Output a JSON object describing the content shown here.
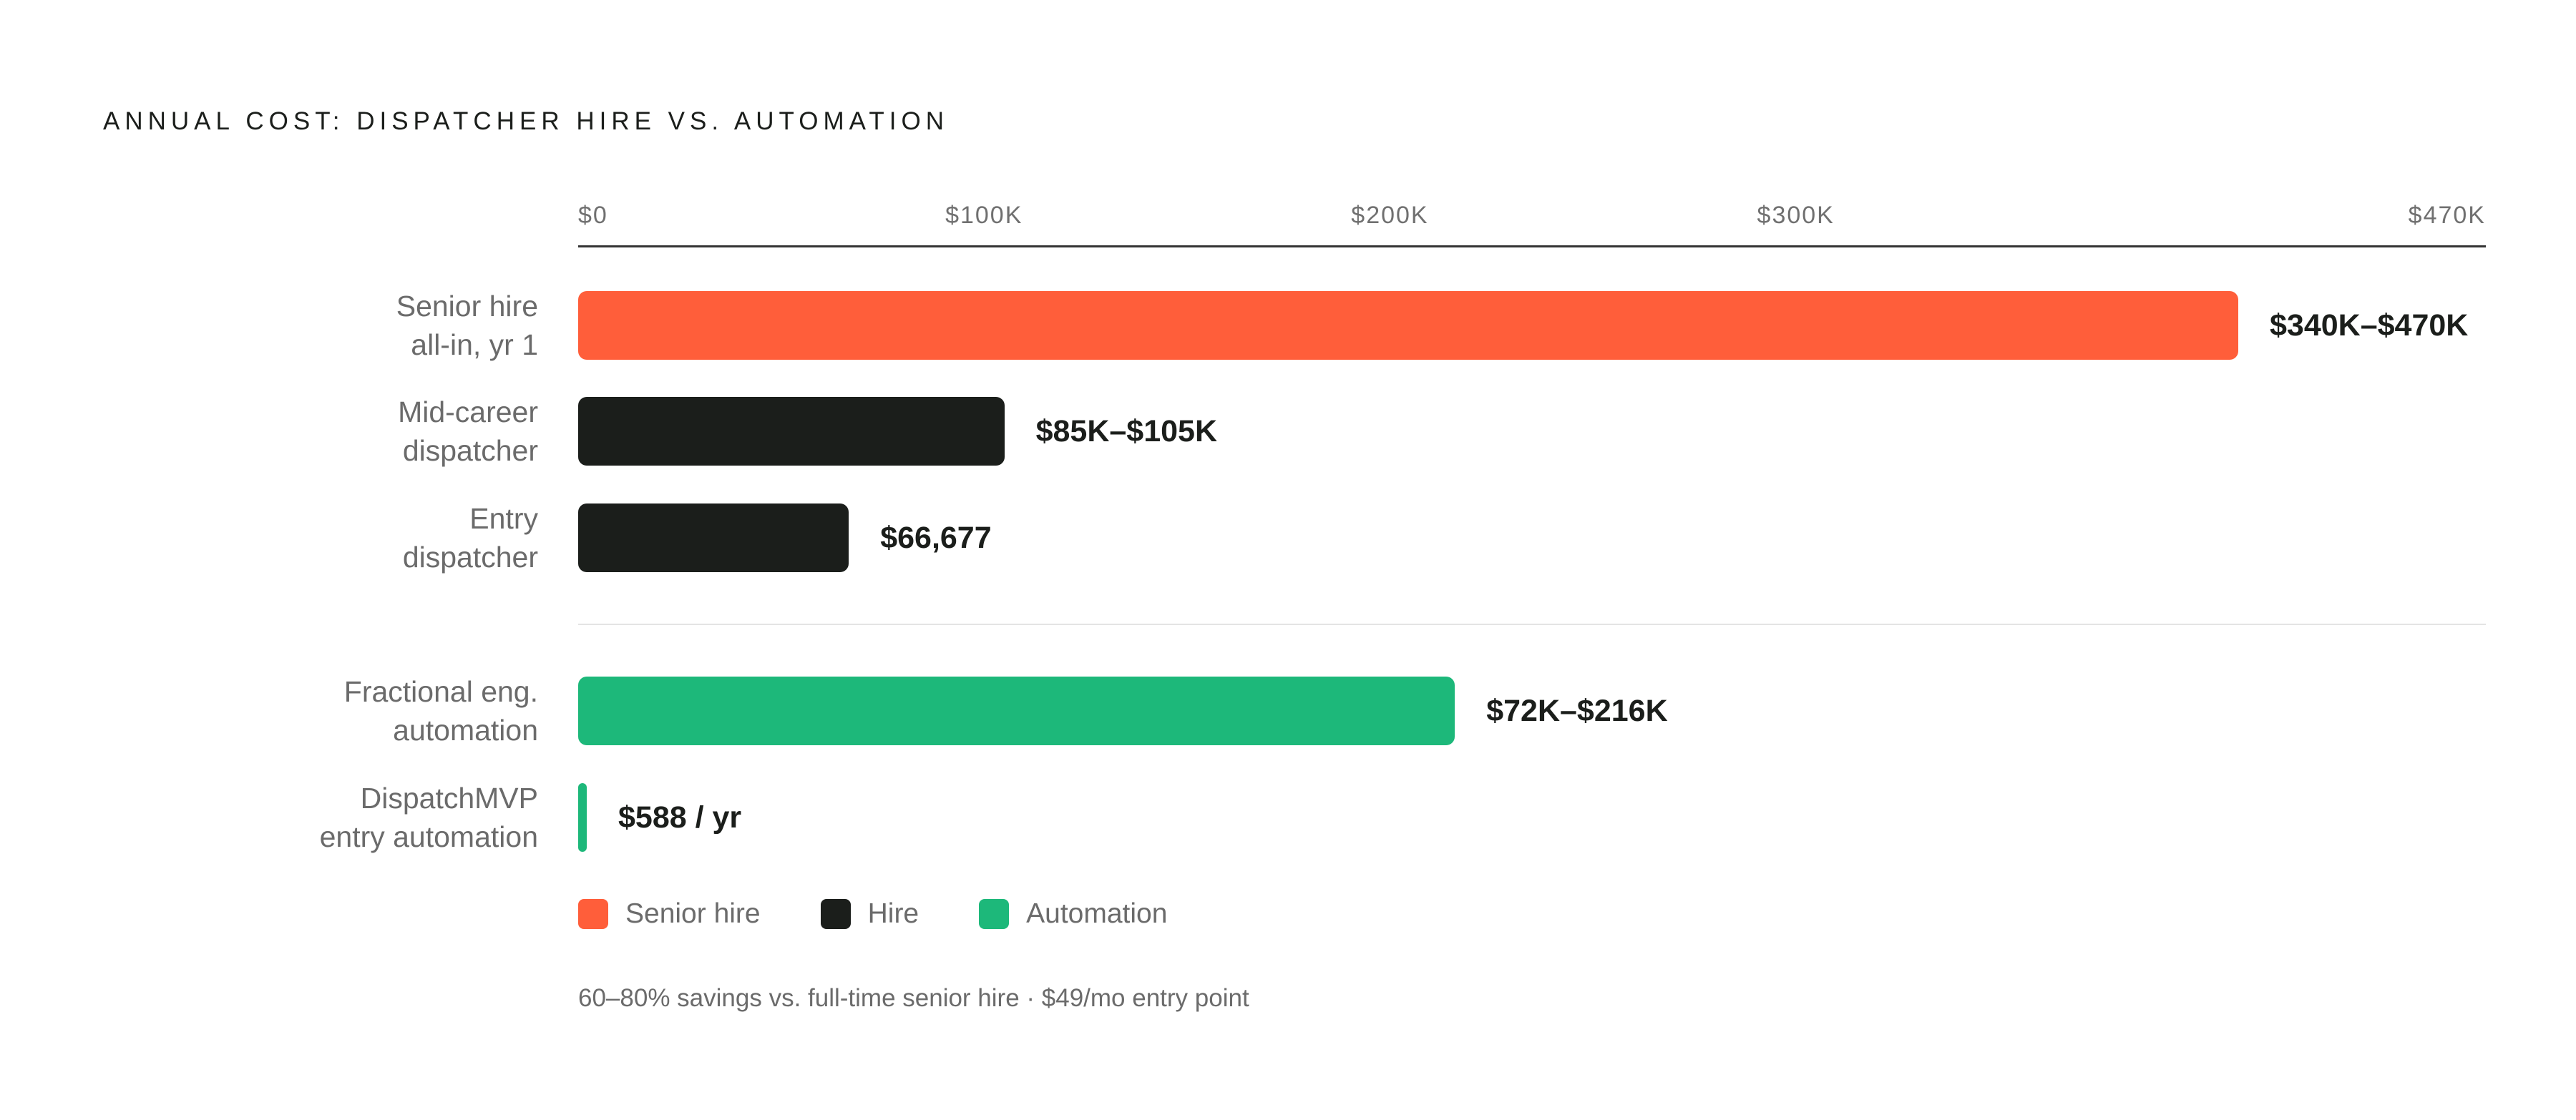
{
  "chart_data": {
    "type": "bar",
    "orientation": "horizontal",
    "title": "ANNUAL COST: DISPATCHER HIRE VS. AUTOMATION",
    "xlim": [
      0,
      470000
    ],
    "ticks": [
      {
        "value": 0,
        "label": "$0"
      },
      {
        "value": 100000,
        "label": "$100K"
      },
      {
        "value": 200000,
        "label": "$200K"
      },
      {
        "value": 300000,
        "label": "$300K"
      },
      {
        "value": 470000,
        "label": "$470K"
      }
    ],
    "rows": [
      {
        "label_lines": [
          "Senior hire",
          "all-in, yr 1"
        ],
        "value": 470000,
        "value_label": "$340K–$470K",
        "category": "senior"
      },
      {
        "label_lines": [
          "Mid-career",
          "dispatcher"
        ],
        "value": 105000,
        "value_label": "$85K–$105K",
        "category": "hire"
      },
      {
        "label_lines": [
          "Entry",
          "dispatcher"
        ],
        "value": 66677,
        "value_label": "$66,677",
        "category": "hire"
      },
      {
        "label_lines": [
          "Fractional eng.",
          "automation"
        ],
        "value": 216000,
        "value_label": "$72K–$216K",
        "category": "automation"
      },
      {
        "label_lines": [
          "DispatchMVP",
          "entry automation"
        ],
        "value": 588,
        "value_label": "$588 / yr",
        "category": "automation"
      }
    ],
    "legend": [
      {
        "key": "senior",
        "label": "Senior hire"
      },
      {
        "key": "hire",
        "label": "Hire"
      },
      {
        "key": "automation",
        "label": "Automation"
      }
    ],
    "colors": {
      "senior": "#ff5e3a",
      "hire": "#1b1e1b",
      "automation": "#1db87a"
    },
    "footnote": "60–80% savings vs. full-time senior hire · $49/mo entry point"
  }
}
